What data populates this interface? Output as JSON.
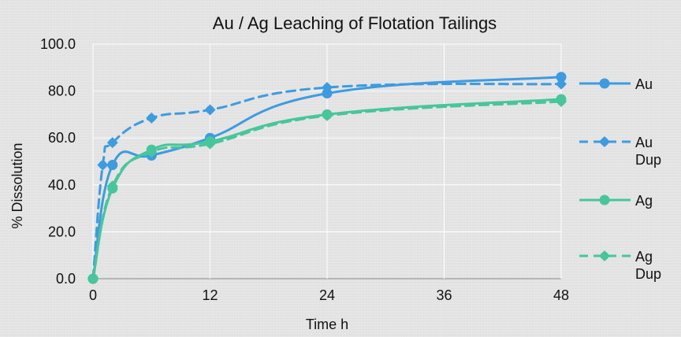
{
  "chart_data": {
    "type": "line",
    "title": "Au / Ag Leaching of Flotation Tailings",
    "xlabel": "Time h",
    "ylabel": "% Dissolution",
    "xlim": [
      0,
      48
    ],
    "ylim": [
      0,
      100
    ],
    "x_ticks": [
      "0",
      "12",
      "24",
      "36",
      "48"
    ],
    "y_ticks": [
      "0.0",
      "20.0",
      "40.0",
      "60.0",
      "80.0",
      "100.0"
    ],
    "grid": true,
    "legend_position": "right",
    "series": [
      {
        "name": "Au",
        "name_lines": [
          "Au"
        ],
        "color": "#3d9be0",
        "dash": false,
        "x": [
          0,
          2,
          6,
          12,
          24,
          48
        ],
        "y": [
          0,
          48.5,
          52.5,
          60.0,
          79.0,
          86.0
        ]
      },
      {
        "name": "Au Dup",
        "name_lines": [
          "Au",
          "Dup"
        ],
        "color": "#3d9be0",
        "dash": true,
        "x": [
          0,
          1,
          2,
          6,
          12,
          24,
          48
        ],
        "y": [
          0,
          48.5,
          58.0,
          68.5,
          72.0,
          81.5,
          83.0
        ]
      },
      {
        "name": "Ag",
        "name_lines": [
          "Ag"
        ],
        "color": "#47c69b",
        "dash": false,
        "x": [
          0,
          2,
          6,
          12,
          24,
          48
        ],
        "y": [
          0,
          38.5,
          55.0,
          58.5,
          70.0,
          76.5
        ]
      },
      {
        "name": "Ag Dup",
        "name_lines": [
          "Ag",
          "Dup"
        ],
        "color": "#47c69b",
        "dash": true,
        "x": [
          0,
          2,
          6,
          12,
          24,
          48
        ],
        "y": [
          0,
          39.5,
          54.0,
          57.5,
          69.5,
          75.5
        ]
      }
    ]
  }
}
